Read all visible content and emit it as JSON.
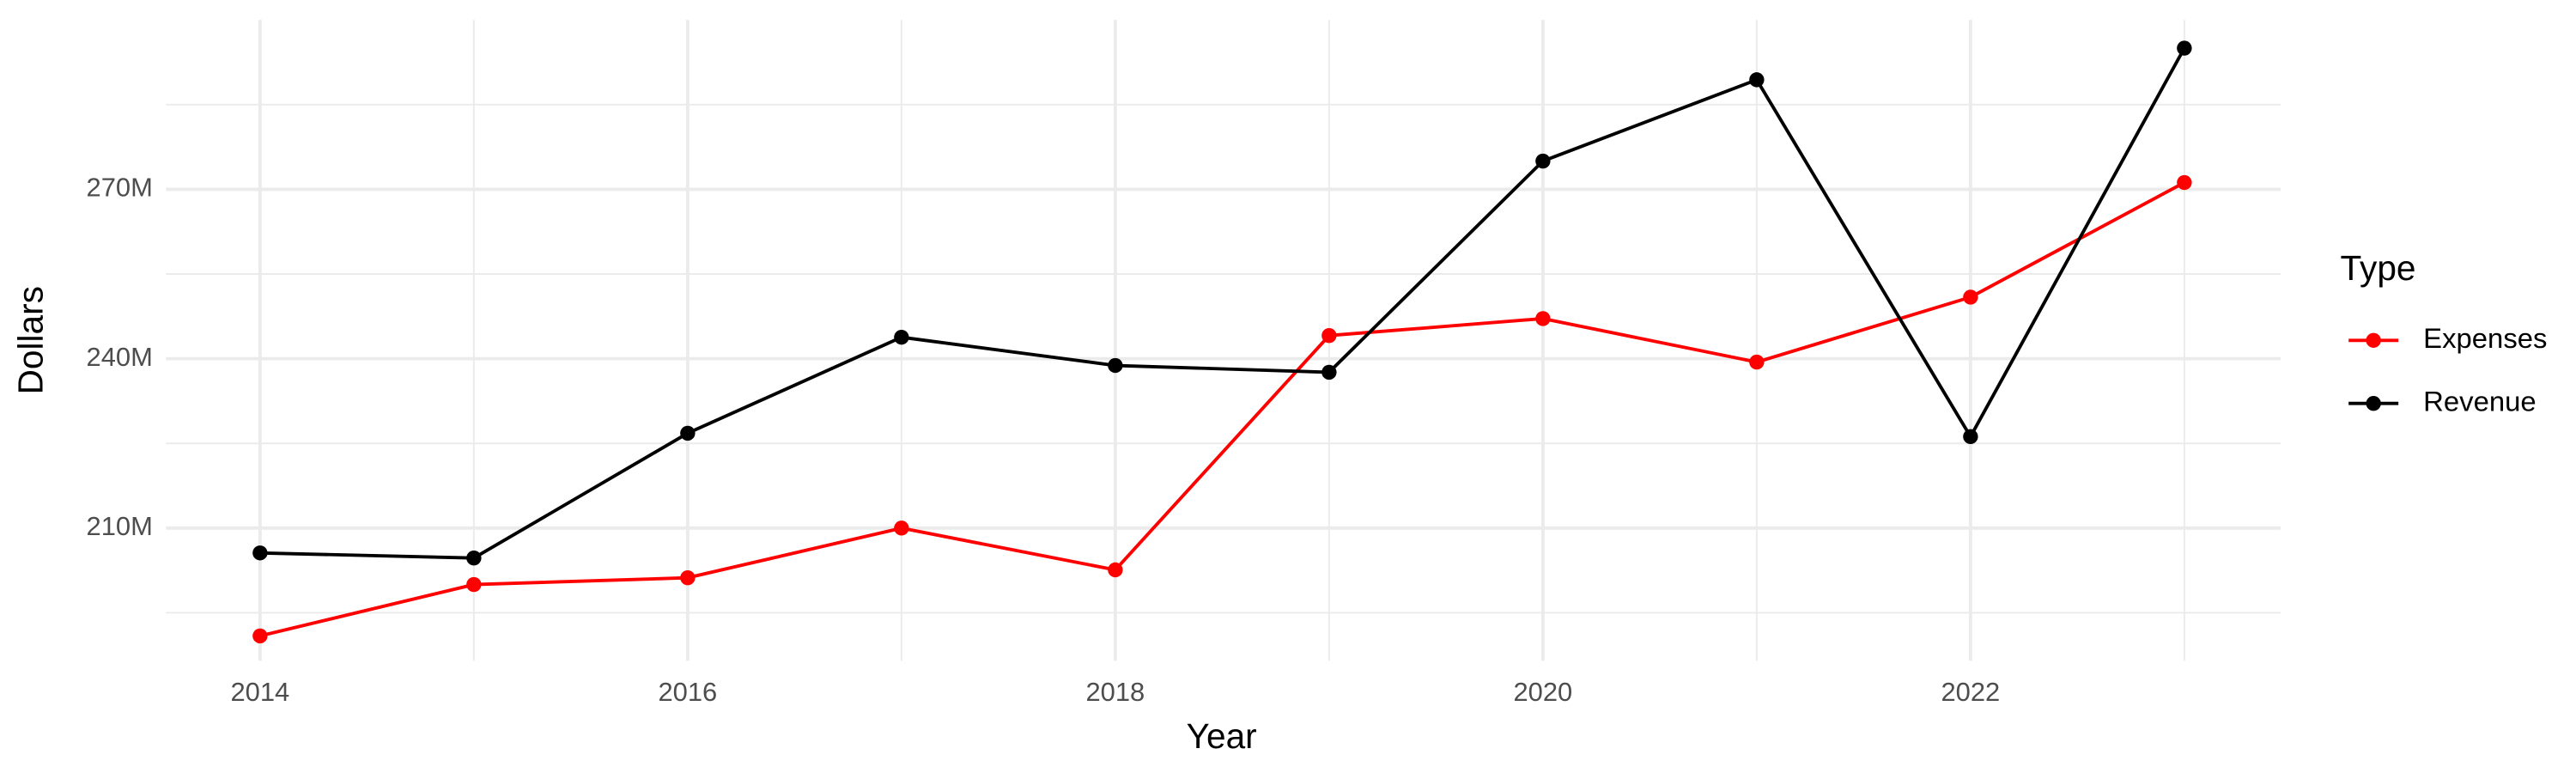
{
  "chart_data": {
    "type": "line",
    "x_label": "Year",
    "y_label": "Dollars",
    "legend_title": "Type",
    "x": [
      2014,
      2015,
      2016,
      2017,
      2018,
      2019,
      2020,
      2021,
      2022,
      2023
    ],
    "series": [
      {
        "name": "Expenses",
        "color": "#ff0000",
        "values": [
          190900000,
          200000000,
          201200000,
          210000000,
          202600000,
          244100000,
          247100000,
          239400000,
          250900000,
          271200000
        ]
      },
      {
        "name": "Revenue",
        "color": "#000000",
        "values": [
          205600000,
          204700000,
          226800000,
          243800000,
          238800000,
          237600000,
          275000000,
          289400000,
          226200000,
          295000000
        ]
      }
    ],
    "xlim": [
      2013.56,
      2023.45
    ],
    "xticks": [
      2014,
      2016,
      2018,
      2020,
      2022
    ],
    "ylim": [
      186500000,
      300000000
    ],
    "yticks": [
      {
        "value": 210000000,
        "label": "210M"
      },
      {
        "value": 240000000,
        "label": "240M"
      },
      {
        "value": 270000000,
        "label": "270M"
      }
    ],
    "grid": true,
    "legend": "right"
  }
}
